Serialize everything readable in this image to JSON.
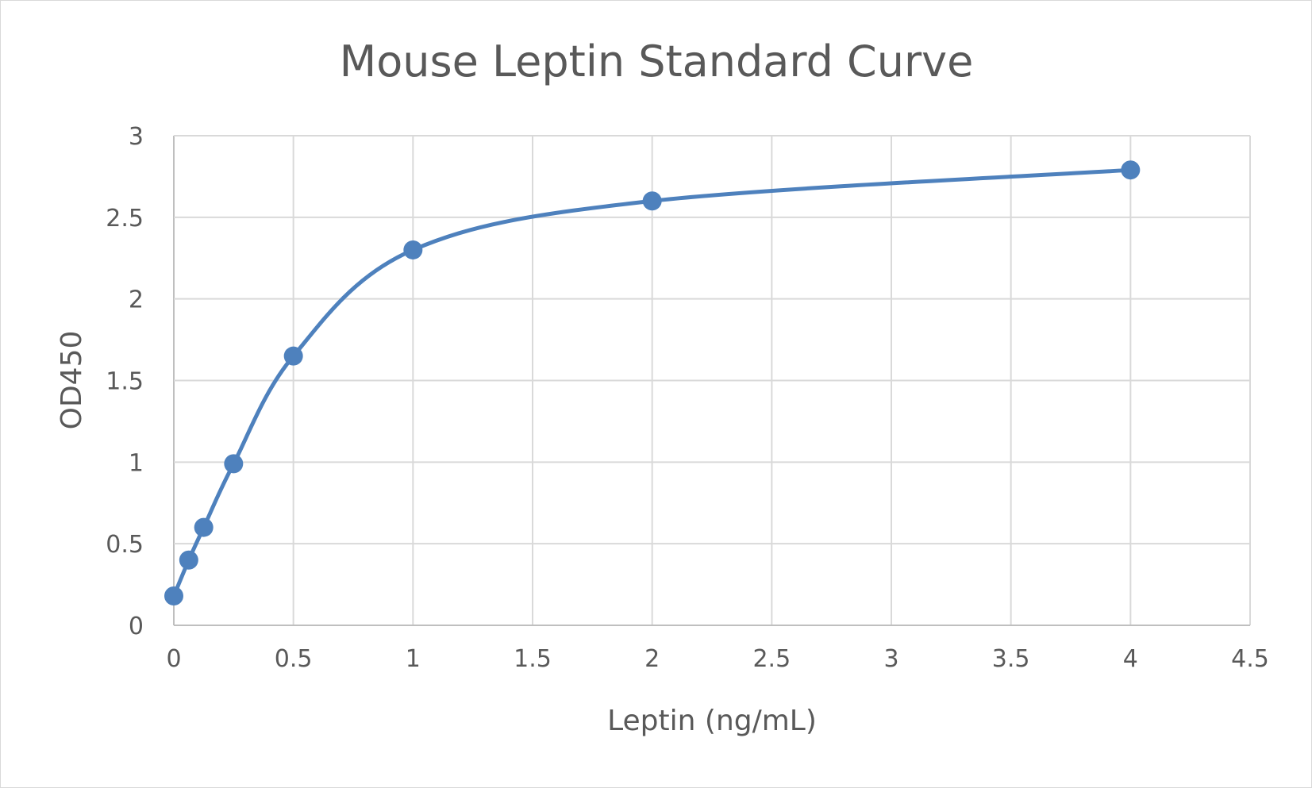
{
  "chart_data": {
    "type": "line",
    "title": "Mouse Leptin Standard Curve",
    "xlabel": "Leptin (ng/mL)",
    "ylabel": "OD450",
    "xlim": [
      0,
      4.5
    ],
    "ylim": [
      0,
      3
    ],
    "xticks": [
      "0",
      "0.5",
      "1",
      "1.5",
      "2",
      "2.5",
      "3",
      "3.5",
      "4",
      "4.5"
    ],
    "yticks": [
      "0",
      "0.5",
      "1",
      "1.5",
      "2",
      "2.5",
      "3"
    ],
    "grid": true,
    "smoothed": true,
    "markers": true,
    "color": "#4e81bd",
    "x": [
      0,
      0.0625,
      0.125,
      0.25,
      0.5,
      1,
      2,
      4
    ],
    "y": [
      0.18,
      0.4,
      0.6,
      0.99,
      1.65,
      2.3,
      2.6,
      2.79
    ]
  }
}
